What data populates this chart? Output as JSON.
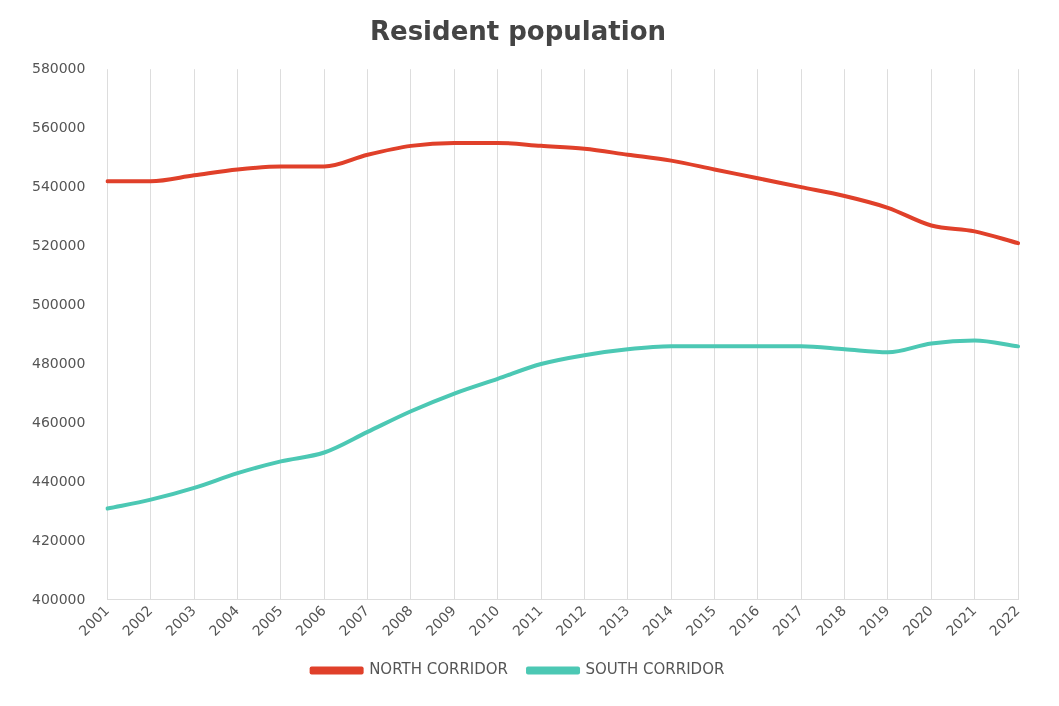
{
  "chart_data": {
    "type": "line",
    "title": "Resident population",
    "categories": [
      "2001",
      "2002",
      "2003",
      "2004",
      "2005",
      "2006",
      "2007",
      "2008",
      "2009",
      "2010",
      "2011",
      "2012",
      "2013",
      "2014",
      "2015",
      "2016",
      "2017",
      "2018",
      "2019",
      "2020",
      "2021",
      "2022"
    ],
    "series": [
      {
        "name": "NORTH CORRIDOR",
        "color": "#e0402a",
        "values": [
          542000,
          542000,
          544000,
          546000,
          547000,
          547000,
          551000,
          554000,
          555000,
          555000,
          554000,
          553000,
          551000,
          549000,
          546000,
          543000,
          540000,
          537000,
          533000,
          527000,
          525000,
          521000
        ]
      },
      {
        "name": "SOUTH CORRIDOR",
        "color": "#4cc8b4",
        "values": [
          431000,
          434000,
          438000,
          443000,
          447000,
          450000,
          457000,
          464000,
          470000,
          475000,
          480000,
          483000,
          485000,
          486000,
          486000,
          486000,
          486000,
          485000,
          484000,
          487000,
          488000,
          486000
        ]
      }
    ],
    "ylim": [
      400000,
      580000
    ],
    "yticks": [
      400000,
      420000,
      440000,
      460000,
      480000,
      500000,
      520000,
      540000,
      560000,
      580000
    ],
    "grid": "x",
    "legend": "bottom",
    "marker": "none",
    "line_style": "solid"
  }
}
